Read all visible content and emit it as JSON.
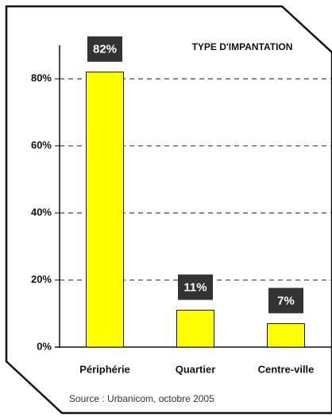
{
  "chart_data": {
    "type": "bar",
    "title": "TYPE D'IMPANTATION",
    "categories": [
      "Périphérie",
      "Quartier",
      "Centre-ville"
    ],
    "values": [
      82,
      11,
      7
    ],
    "value_labels": [
      "82%",
      "11%",
      "7%"
    ],
    "color": "#ffff00",
    "ylim": [
      0,
      90
    ],
    "yticks": [
      {
        "value": 0,
        "label": "0%"
      },
      {
        "value": 20,
        "label": "20%"
      },
      {
        "value": 40,
        "label": "40%"
      },
      {
        "value": 60,
        "label": "60%"
      },
      {
        "value": 80,
        "label": "80%"
      }
    ],
    "grid": true,
    "source": "Source : Urbanicom, octobre 2005"
  }
}
